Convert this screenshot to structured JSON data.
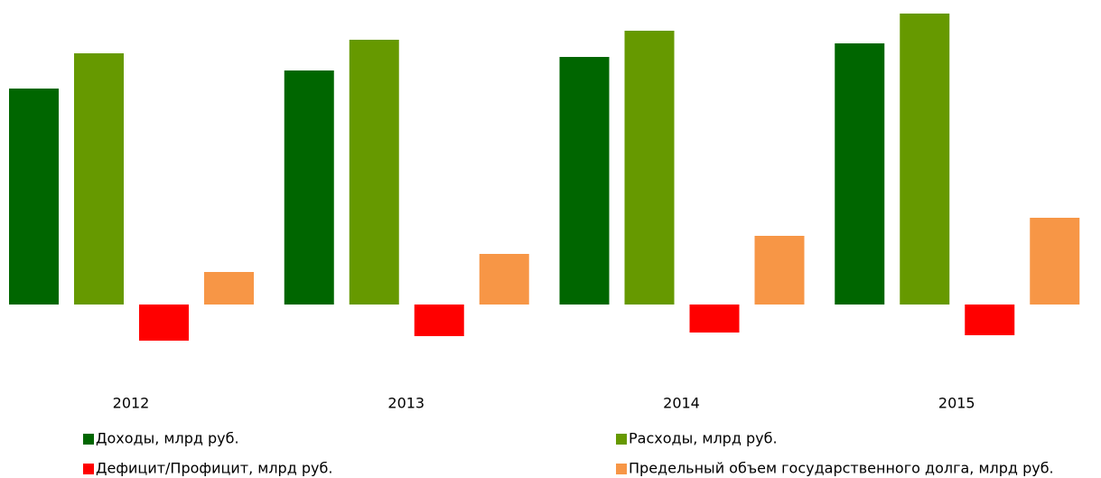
{
  "chart_data": {
    "type": "bar",
    "categories": [
      "2012",
      "2013",
      "2014",
      "2015"
    ],
    "series": [
      {
        "name": "Доходы, млрд руб.",
        "color": "#006600",
        "values": [
          239,
          259,
          274,
          289
        ]
      },
      {
        "name": "Расходы, млрд руб.",
        "color": "#669900",
        "values": [
          278,
          293,
          303,
          322
        ]
      },
      {
        "name": "Дефицит/Профицит, млрд руб.",
        "color": "#ff0000",
        "values": [
          -40,
          -35,
          -31,
          -34
        ]
      },
      {
        "name": "Предельный объем государственного долга, млрд руб.",
        "color": "#f79646",
        "values": [
          36,
          56,
          76,
          96
        ]
      }
    ],
    "ylim": [
      -40,
      325
    ]
  }
}
